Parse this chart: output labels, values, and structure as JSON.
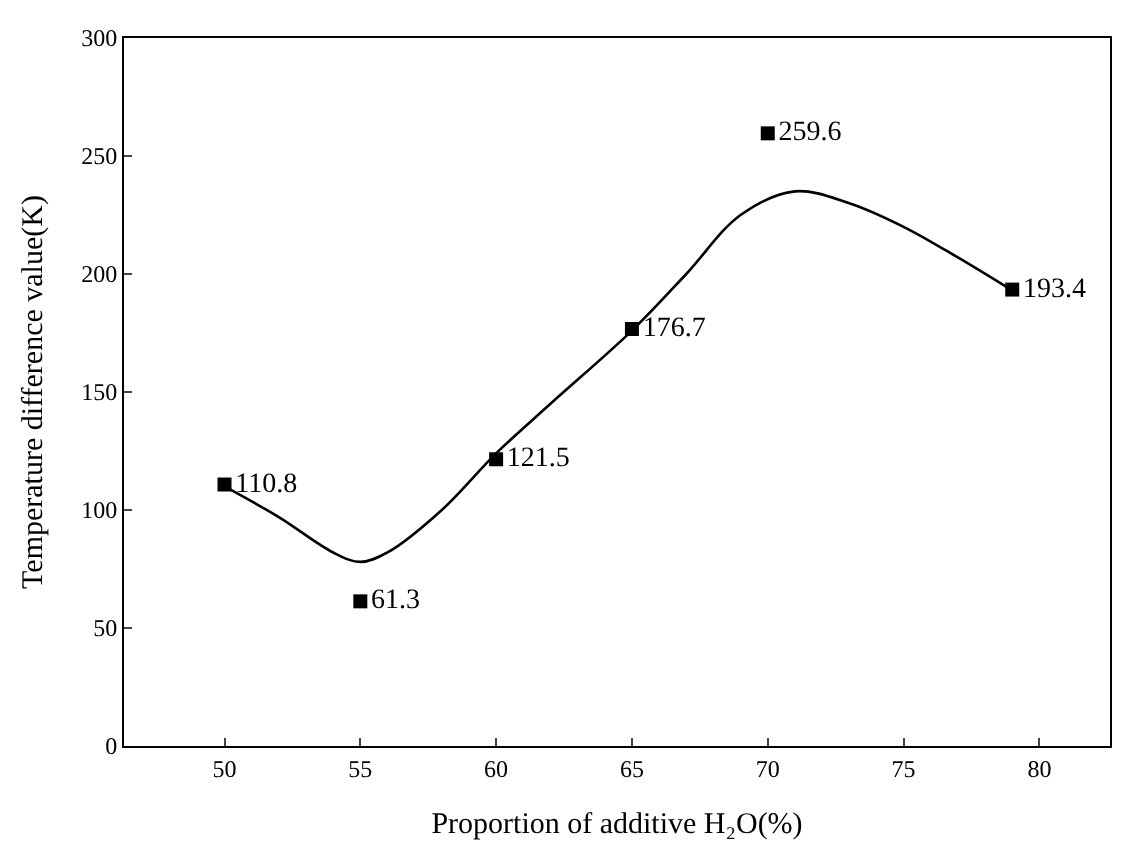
{
  "chart_data": {
    "type": "scatter",
    "xlabel": "Proportion of additive H₂O(%)",
    "ylabel": "Temperature difference value(K)",
    "xlim": [
      46.3,
      82.6
    ],
    "xticks": [
      50,
      55,
      60,
      65,
      70,
      75,
      80
    ],
    "ylim": [
      0,
      300
    ],
    "yticks": [
      0,
      50,
      100,
      150,
      200,
      250,
      300
    ],
    "series": [
      {
        "marker": "square",
        "color": "#000000",
        "data_labels": true,
        "x": [
          50,
          55,
          60,
          65,
          70,
          79
        ],
        "values": [
          110.8,
          61.3,
          121.5,
          176.7,
          259.6,
          193.4
        ]
      },
      {
        "type": "line",
        "marker": "none",
        "line_style": "solid",
        "color": "#000000",
        "x": [
          50,
          52,
          54,
          55,
          56,
          58,
          60,
          62,
          65,
          67,
          69,
          71,
          73,
          75,
          77,
          79
        ],
        "values": [
          110,
          97,
          82,
          78,
          82,
          100,
          124,
          145,
          176,
          200,
          225,
          235,
          230,
          220,
          207,
          193
        ]
      }
    ]
  }
}
